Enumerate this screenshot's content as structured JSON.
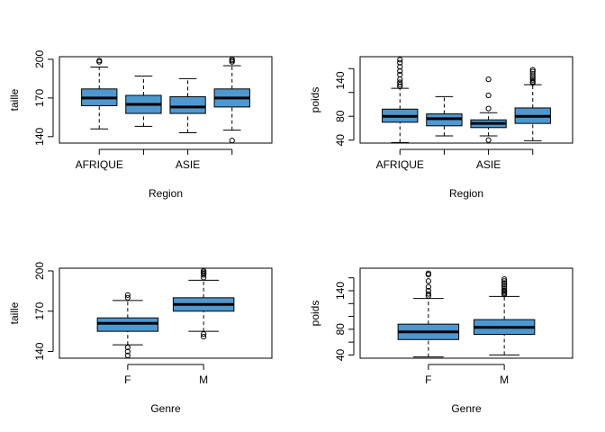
{
  "figure": {
    "background": "#ffffff",
    "box_fill": "#4f97cf"
  },
  "chart_data": [
    {
      "type": "boxplot",
      "xlabel": "Region",
      "ylabel": "taille",
      "categories": [
        "AFRIQUE",
        "",
        "ASIE",
        ""
      ],
      "ylim": [
        135,
        202
      ],
      "yticks": [
        140,
        170,
        200
      ],
      "boxes": [
        {
          "whisker_low": 146,
          "q1": 164,
          "median": 170,
          "q3": 177,
          "whisker_high": 194,
          "outliers": [
            198,
            199
          ]
        },
        {
          "whisker_low": 148,
          "q1": 158,
          "median": 165,
          "q3": 172,
          "whisker_high": 187,
          "outliers": []
        },
        {
          "whisker_low": 143,
          "q1": 158,
          "median": 163,
          "q3": 171,
          "whisker_high": 185,
          "outliers": []
        },
        {
          "whisker_low": 145,
          "q1": 163,
          "median": 170,
          "q3": 177,
          "whisker_high": 195,
          "outliers": [
            198,
            199,
            200,
            137
          ]
        }
      ]
    },
    {
      "type": "boxplot",
      "xlabel": "Region",
      "ylabel": "poids",
      "categories": [
        "AFRIQUE",
        "",
        "ASIE",
        ""
      ],
      "ylim": [
        35,
        180
      ],
      "yticks": [
        40,
        80,
        120,
        160
      ],
      "ytick_labels": [
        "40",
        "80",
        "140"
      ],
      "ytick_label_values": [
        40,
        80,
        140
      ],
      "boxes": [
        {
          "whisker_low": 36,
          "q1": 70,
          "median": 80,
          "q3": 92,
          "whisker_high": 127,
          "outliers": [
            130,
            133,
            137,
            142,
            150,
            156,
            163,
            170,
            175
          ]
        },
        {
          "whisker_low": 47,
          "q1": 64,
          "median": 76,
          "q3": 84,
          "whisker_high": 113,
          "outliers": []
        },
        {
          "whisker_low": 47,
          "q1": 61,
          "median": 68,
          "q3": 74,
          "whisker_high": 86,
          "outliers": [
            40,
            93,
            115,
            142
          ]
        },
        {
          "whisker_low": 39,
          "q1": 68,
          "median": 80,
          "q3": 94,
          "whisker_high": 133,
          "outliers": [
            136,
            138,
            141,
            144,
            147,
            151,
            155,
            158
          ]
        }
      ]
    },
    {
      "type": "boxplot",
      "xlabel": "Genre",
      "ylabel": "taille",
      "categories": [
        "F",
        "M"
      ],
      "ylim": [
        135,
        202
      ],
      "yticks": [
        140,
        170,
        200
      ],
      "boxes": [
        {
          "whisker_low": 145,
          "q1": 155,
          "median": 161,
          "q3": 165,
          "whisker_high": 178,
          "outliers": [
            180,
            182,
            143,
            140,
            137
          ]
        },
        {
          "whisker_low": 155,
          "q1": 170,
          "median": 175,
          "q3": 180,
          "whisker_high": 193,
          "outliers": [
            195,
            197,
            198,
            199,
            200,
            153,
            151
          ]
        }
      ]
    },
    {
      "type": "boxplot",
      "xlabel": "Genre",
      "ylabel": "poids",
      "categories": [
        "F",
        "M"
      ],
      "ylim": [
        35,
        175
      ],
      "yticks": [
        40,
        60,
        80,
        100,
        120,
        140,
        160
      ],
      "ytick_labels": [
        "40",
        "80",
        "140"
      ],
      "ytick_label_values": [
        40,
        80,
        140
      ],
      "boxes": [
        {
          "whisker_low": 37,
          "q1": 64,
          "median": 76,
          "q3": 88,
          "whisker_high": 128,
          "outliers": [
            132,
            135,
            140,
            146,
            155,
            165,
            167
          ]
        },
        {
          "whisker_low": 40,
          "q1": 72,
          "median": 83,
          "q3": 95,
          "whisker_high": 131,
          "outliers": [
            134,
            136,
            138,
            140,
            143,
            146,
            149,
            152,
            155,
            158
          ]
        }
      ]
    }
  ]
}
